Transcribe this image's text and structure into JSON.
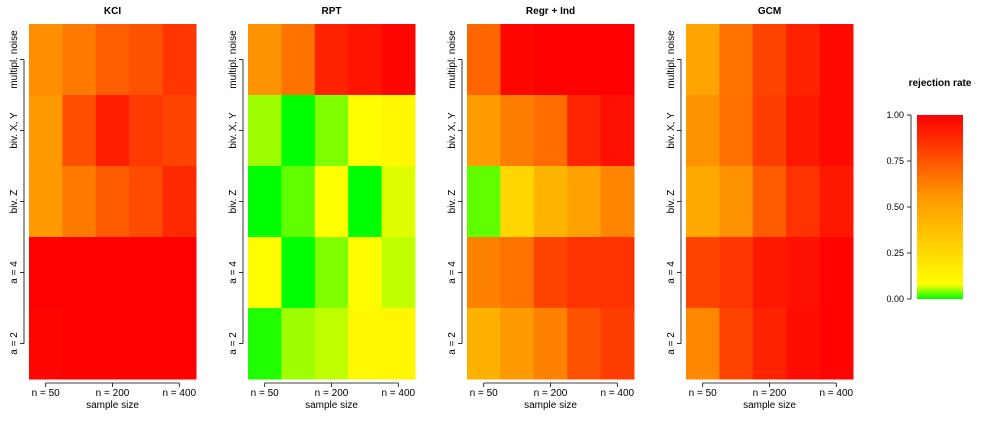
{
  "legend": {
    "title": "rejection rate",
    "ticks": [
      "0.00",
      "0.25",
      "0.50",
      "0.75",
      "1.00"
    ],
    "tick_values": [
      0,
      0.25,
      0.5,
      0.75,
      1.0
    ],
    "colors": {
      "low_green": "#00ff00",
      "yellow": "#ffff00",
      "orange": "#ff9900",
      "red": "#ff0000"
    }
  },
  "chart_data": [
    {
      "type": "heatmap",
      "title": "KCI",
      "xlabel": "sample size",
      "x_ticks": [
        "n = 50",
        "n = 200",
        "n = 400"
      ],
      "rows": [
        "multipl. noise",
        "biv. X, Y",
        "biv. Z",
        "a = 4",
        "a = 2"
      ],
      "n_columns": 5,
      "values": [
        [
          0.58,
          0.64,
          0.72,
          0.76,
          0.84
        ],
        [
          0.55,
          0.77,
          0.91,
          0.83,
          0.8
        ],
        [
          0.54,
          0.64,
          0.73,
          0.78,
          0.88
        ],
        [
          1.0,
          1.0,
          1.0,
          1.0,
          1.0
        ],
        [
          0.98,
          1.0,
          1.0,
          1.0,
          1.0
        ]
      ]
    },
    {
      "type": "heatmap",
      "title": "RPT",
      "xlabel": "sample size",
      "x_ticks": [
        "n = 50",
        "n = 200",
        "n = 400"
      ],
      "rows": [
        "multipl. noise",
        "biv. X, Y",
        "biv. Z",
        "a = 4",
        "a = 2"
      ],
      "n_columns": 5,
      "values": [
        [
          0.57,
          0.66,
          0.9,
          0.94,
          0.98
        ],
        [
          0.05,
          0.0,
          0.04,
          0.09,
          0.11
        ],
        [
          0.0,
          0.03,
          0.08,
          0.0,
          0.07
        ],
        [
          0.09,
          0.0,
          0.04,
          0.1,
          0.06
        ],
        [
          0.01,
          0.05,
          0.06,
          0.11,
          0.12
        ]
      ]
    },
    {
      "type": "heatmap",
      "title": "Regr + Ind",
      "xlabel": "sample size",
      "x_ticks": [
        "n = 50",
        "n = 200",
        "n = 400"
      ],
      "rows": [
        "multipl. noise",
        "biv. X, Y",
        "biv. Z",
        "a = 4",
        "a = 2"
      ],
      "n_columns": 5,
      "values": [
        [
          0.7,
          0.98,
          1.0,
          1.0,
          1.0
        ],
        [
          0.53,
          0.63,
          0.68,
          0.89,
          0.95
        ],
        [
          0.03,
          0.27,
          0.42,
          0.51,
          0.61
        ],
        [
          0.62,
          0.66,
          0.8,
          0.85,
          0.85
        ],
        [
          0.44,
          0.55,
          0.62,
          0.76,
          0.82
        ]
      ]
    },
    {
      "type": "heatmap",
      "title": "GCM",
      "xlabel": "sample size",
      "x_ticks": [
        "n = 50",
        "n = 200",
        "n = 400"
      ],
      "rows": [
        "multipl. noise",
        "biv. X, Y",
        "biv. Z",
        "a = 4",
        "a = 2"
      ],
      "n_columns": 5,
      "values": [
        [
          0.5,
          0.66,
          0.8,
          0.9,
          0.97
        ],
        [
          0.57,
          0.67,
          0.82,
          0.93,
          0.97
        ],
        [
          0.48,
          0.57,
          0.73,
          0.85,
          0.93
        ],
        [
          0.8,
          0.84,
          0.93,
          0.95,
          0.99
        ],
        [
          0.6,
          0.8,
          0.9,
          0.96,
          0.99
        ]
      ]
    }
  ]
}
